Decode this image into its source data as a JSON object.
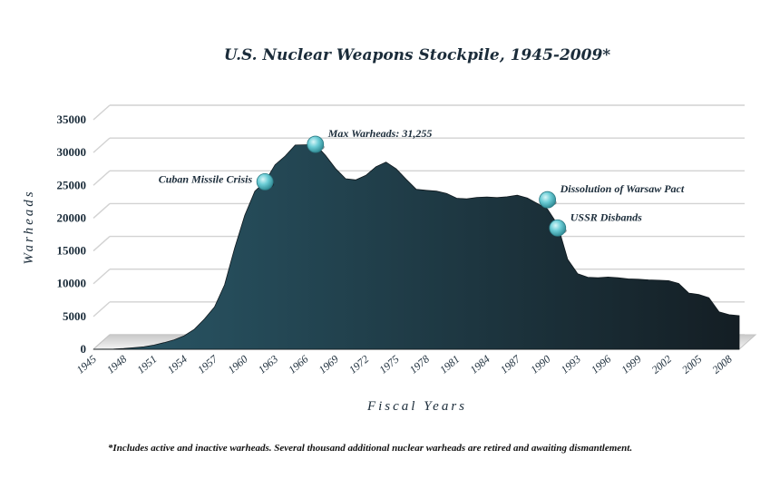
{
  "chart_data": {
    "type": "area",
    "title": "U.S. Nuclear Weapons Stockpile, 1945-2009*",
    "xlabel": "Fiscal Years",
    "ylabel": "Warheads",
    "ylim": [
      0,
      35000
    ],
    "xlim": [
      1945,
      2009
    ],
    "y_ticks": [
      0,
      5000,
      10000,
      15000,
      20000,
      25000,
      30000,
      35000
    ],
    "y_tick_labels": [
      "0",
      "5000",
      "10000",
      "15000",
      "20000",
      "25000",
      "30000",
      "35000"
    ],
    "x_ticks": [
      1945,
      1948,
      1951,
      1954,
      1957,
      1960,
      1963,
      1966,
      1969,
      1972,
      1975,
      1978,
      1981,
      1984,
      1987,
      1990,
      1993,
      1996,
      1999,
      2002,
      2005,
      2008
    ],
    "x_tick_labels": [
      "1945",
      "1948",
      "1951",
      "1954",
      "1957",
      "1960",
      "1963",
      "1966",
      "1969",
      "1972",
      "1975",
      "1978",
      "1981",
      "1984",
      "1987",
      "1990",
      "1993",
      "1996",
      "1999",
      "2002",
      "2005",
      "2008"
    ],
    "grid": true,
    "colors": {
      "area_light": "#2a5868",
      "area_dark": "#141e24",
      "marker": "#5cc2cc",
      "grid": "#d2d2d2"
    },
    "series": [
      {
        "x": [
          1945,
          1946,
          1947,
          1948,
          1949,
          1950,
          1951,
          1952,
          1953,
          1954,
          1955,
          1956,
          1957,
          1958,
          1959,
          1960,
          1961,
          1962,
          1963,
          1964,
          1965,
          1966,
          1967,
          1968,
          1969,
          1970,
          1971,
          1972,
          1973,
          1974,
          1975,
          1976,
          1977,
          1978,
          1979,
          1980,
          1981,
          1982,
          1983,
          1984,
          1985,
          1986,
          1987,
          1988,
          1989,
          1990,
          1991,
          1992,
          1993,
          1994,
          1995,
          1996,
          1997,
          1998,
          1999,
          2000,
          2001,
          2002,
          2003,
          2004,
          2005,
          2006,
          2007,
          2008,
          2009
        ],
        "values": [
          6,
          11,
          32,
          110,
          235,
          369,
          640,
          1005,
          1436,
          2063,
          3057,
          4618,
          6444,
          9822,
          15468,
          20434,
          24111,
          25540,
          28133,
          29463,
          31139,
          31175,
          31255,
          29561,
          27552,
          26008,
          25830,
          26516,
          27835,
          28537,
          27519,
          25914,
          24393,
          24243,
          24107,
          23764,
          23031,
          22937,
          23154,
          23228,
          23135,
          23254,
          23490,
          23077,
          22217,
          21392,
          19008,
          13708,
          11511,
          10979,
          10904,
          11011,
          10903,
          10732,
          10685,
          10577,
          10526,
          10457,
          10027,
          8570,
          8360,
          7853,
          5709,
          5273,
          5113
        ]
      }
    ],
    "annotations": [
      {
        "label": "Cuban Missile Crisis",
        "x": 1962,
        "y": 25540,
        "side": "left"
      },
      {
        "label": "Max Warheads: 31,255",
        "x": 1967,
        "y": 31255,
        "side": "right"
      },
      {
        "label": "Dissolution of Warsaw Pact",
        "x": 1990,
        "y": 22800,
        "side": "right"
      },
      {
        "label": "USSR Disbands",
        "x": 1991,
        "y": 18500,
        "side": "right"
      }
    ],
    "footnote": "*Includes active and inactive warheads.  Several thousand additional nuclear warheads are retired and awaiting dismantlement."
  }
}
